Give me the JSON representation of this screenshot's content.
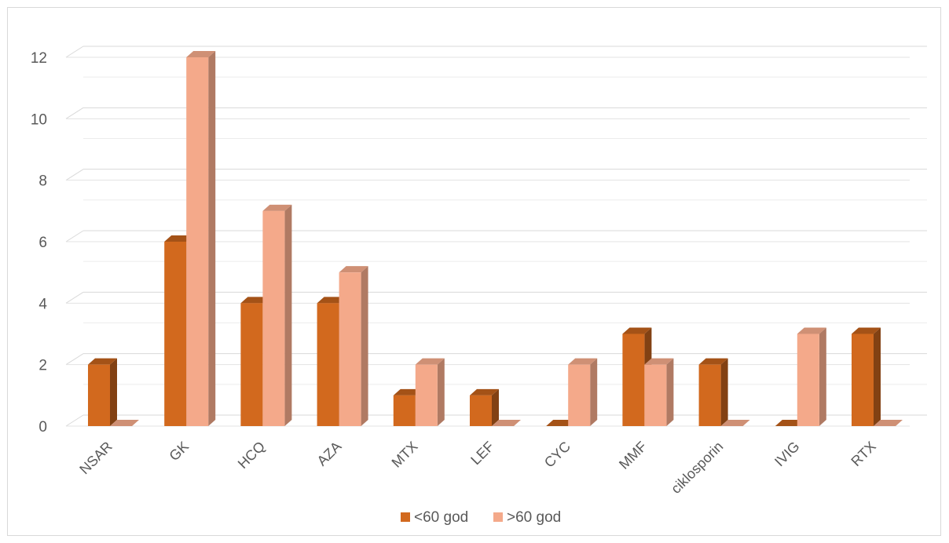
{
  "chart_data": {
    "type": "bar",
    "title": "",
    "xlabel": "",
    "ylabel": "",
    "ylim": [
      0,
      12
    ],
    "yticks": [
      0,
      2,
      4,
      6,
      8,
      10,
      12
    ],
    "grid": true,
    "legend": "bottom",
    "categories": [
      "NSAR",
      "GK",
      "HCQ",
      "AZA",
      "MTX",
      "LEF",
      "CYC",
      "MMF",
      "ciklosporin",
      "IVIG",
      "RTX"
    ],
    "series": [
      {
        "name": "<60 god",
        "color": "#d2691e",
        "values": [
          2,
          6,
          4,
          4,
          1,
          1,
          0,
          3,
          2,
          0,
          3
        ]
      },
      {
        "name": ">60 god",
        "color": "#f4a98a",
        "values": [
          0,
          12,
          7,
          5,
          2,
          0,
          2,
          2,
          0,
          3,
          0
        ]
      }
    ]
  }
}
